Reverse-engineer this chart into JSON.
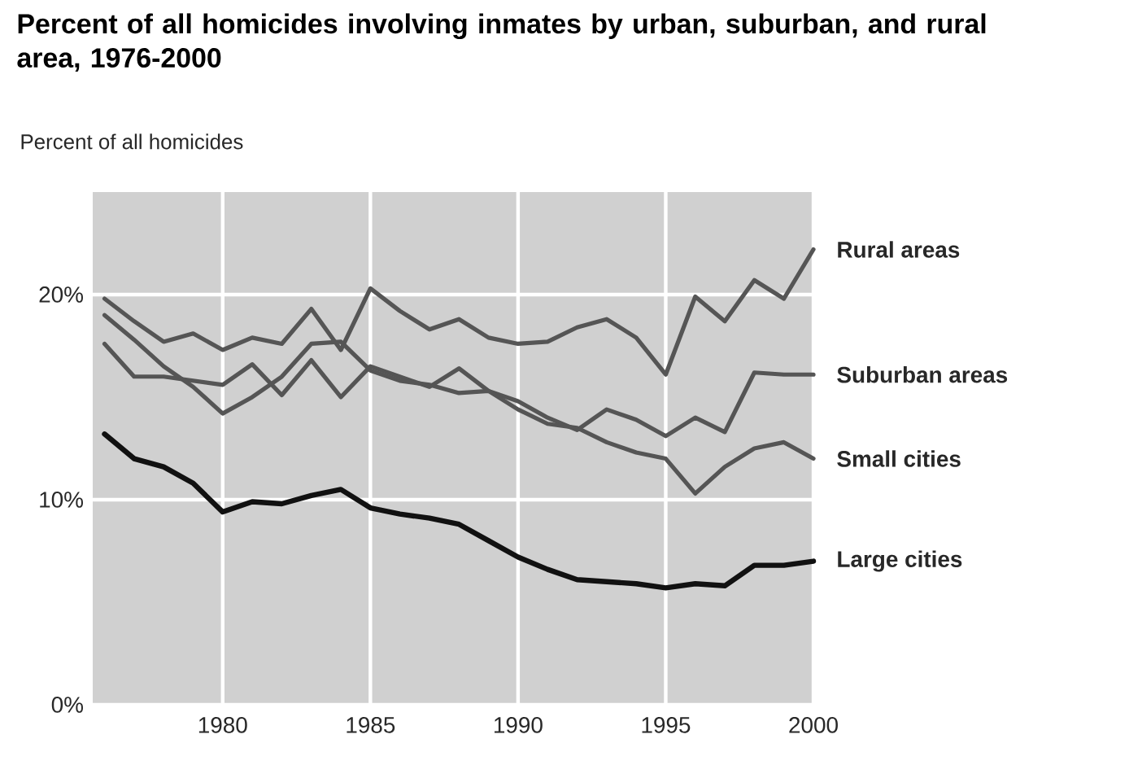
{
  "chart_data": {
    "type": "line",
    "title": "Percent of all homicides involving inmates by urban, suburban, and rural area, 1976-2000",
    "ylabel": "Percent of all homicides",
    "x": [
      1976,
      1977,
      1978,
      1979,
      1980,
      1981,
      1982,
      1983,
      1984,
      1985,
      1986,
      1987,
      1988,
      1989,
      1990,
      1991,
      1992,
      1993,
      1994,
      1995,
      1996,
      1997,
      1998,
      1999,
      2000
    ],
    "series": [
      {
        "name": "Rural areas",
        "color": "#555555",
        "values": [
          19.8,
          18.7,
          17.7,
          18.1,
          17.3,
          17.9,
          17.6,
          19.3,
          17.3,
          20.3,
          19.2,
          18.3,
          18.8,
          17.9,
          17.6,
          17.7,
          18.4,
          18.8,
          17.9,
          16.1,
          19.9,
          18.7,
          20.7,
          19.8,
          22.2
        ]
      },
      {
        "name": "Suburban areas",
        "color": "#555555",
        "values": [
          17.6,
          16.0,
          16.0,
          15.8,
          15.6,
          16.6,
          15.1,
          16.8,
          15.0,
          16.5,
          16.0,
          15.5,
          16.4,
          15.3,
          14.8,
          14.0,
          13.4,
          14.4,
          13.9,
          13.1,
          14.0,
          13.3,
          16.2,
          16.1,
          16.1
        ]
      },
      {
        "name": "Small cities",
        "color": "#555555",
        "values": [
          19.0,
          17.8,
          16.5,
          15.5,
          14.2,
          15.0,
          16.0,
          17.6,
          17.7,
          16.3,
          15.8,
          15.6,
          15.2,
          15.3,
          14.4,
          13.7,
          13.5,
          12.8,
          12.3,
          12.0,
          10.3,
          11.6,
          12.5,
          12.8,
          12.0
        ]
      },
      {
        "name": "Large cities",
        "color": "#111111",
        "values": [
          13.2,
          12.0,
          11.6,
          10.8,
          9.4,
          9.9,
          9.8,
          10.2,
          10.5,
          9.6,
          9.3,
          9.1,
          8.8,
          8.0,
          7.2,
          6.6,
          6.1,
          6.0,
          5.9,
          5.7,
          5.9,
          5.8,
          6.8,
          6.8,
          7.0
        ]
      }
    ],
    "xlim": [
      1975.6,
      2000
    ],
    "ylim": [
      0,
      25
    ],
    "xticks": [
      1980,
      1985,
      1990,
      1995,
      2000
    ],
    "yticks": [
      {
        "value": 0,
        "label": "0%"
      },
      {
        "value": 10,
        "label": "10%"
      },
      {
        "value": 20,
        "label": "20%"
      }
    ],
    "grid": true,
    "legend": false,
    "marker": "none",
    "line_style": "solid"
  }
}
